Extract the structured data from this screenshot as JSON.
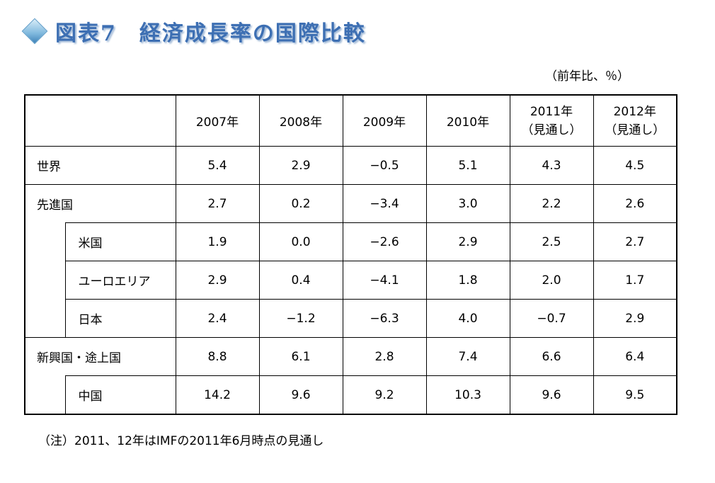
{
  "title": {
    "text": "図表7　経済成長率の国際比較"
  },
  "unit_label": "（前年比、％）",
  "table": {
    "headers": [
      "2007年",
      "2008年",
      "2009年",
      "2010年",
      "2011年\n（見通し）",
      "2012年\n（見通し）"
    ],
    "rows": [
      {
        "label": "世界",
        "values": [
          "5.4",
          "2.9",
          "−0.5",
          "5.1",
          "4.3",
          "4.5"
        ]
      },
      {
        "label": "先進国",
        "values": [
          "2.7",
          "0.2",
          "−3.4",
          "3.0",
          "2.2",
          "2.6"
        ]
      },
      {
        "label": "米国",
        "values": [
          "1.9",
          "0.0",
          "−2.6",
          "2.9",
          "2.5",
          "2.7"
        ]
      },
      {
        "label": "ユーロエリア",
        "values": [
          "2.9",
          "0.4",
          "−4.1",
          "1.8",
          "2.0",
          "1.7"
        ]
      },
      {
        "label": "日本",
        "values": [
          "2.4",
          "−1.2",
          "−6.3",
          "4.0",
          "−0.7",
          "2.9"
        ]
      },
      {
        "label": "新興国・途上国",
        "values": [
          "8.8",
          "6.1",
          "2.8",
          "7.4",
          "6.6",
          "6.4"
        ]
      },
      {
        "label": "中国",
        "values": [
          "14.2",
          "9.6",
          "9.2",
          "10.3",
          "9.6",
          "9.5"
        ]
      }
    ]
  },
  "note": "（注）2011、12年はIMFの2011年6月時点の見通し"
}
